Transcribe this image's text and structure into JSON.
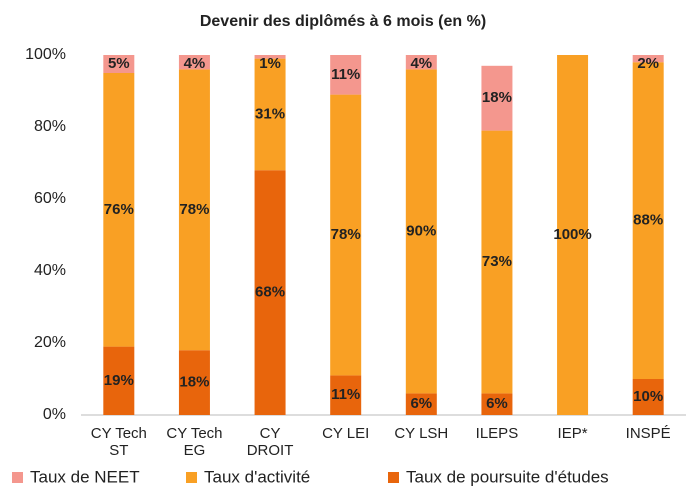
{
  "chart_data": {
    "type": "stacked_bar",
    "title": "Devenir des diplômés à 6 mois (en %)",
    "categories": [
      [
        "CY Tech",
        "ST"
      ],
      [
        "CY Tech",
        "EG"
      ],
      [
        "CY",
        "DROIT"
      ],
      [
        "CY LEI"
      ],
      [
        "CY LSH"
      ],
      [
        "ILEPS"
      ],
      [
        "IEP*"
      ],
      [
        "INSPÉ"
      ]
    ],
    "series": [
      {
        "name": "Taux de poursuite d'études",
        "color": "#E8650C",
        "values": [
          19,
          18,
          68,
          11,
          6,
          6,
          null,
          10
        ],
        "value_labels": [
          "19%",
          "18%",
          "68%",
          "11%",
          "6%",
          "6%",
          null,
          "10%"
        ]
      },
      {
        "name": "Taux d'activité",
        "color": "#F9A024",
        "values": [
          76,
          78,
          31,
          78,
          90,
          73,
          100,
          88
        ],
        "value_labels": [
          "76%",
          "78%",
          "31%",
          "78%",
          "90%",
          "73%",
          "100%",
          "88%"
        ]
      },
      {
        "name": "Taux de NEET",
        "color": "#F4978E",
        "values": [
          5,
          4,
          1,
          11,
          4,
          18,
          null,
          2
        ],
        "value_labels": [
          "5%",
          "4%",
          "1%",
          "11%",
          "4%",
          "18%",
          null,
          "2%"
        ]
      }
    ],
    "legend_order": [
      2,
      1,
      0
    ],
    "ylim": [
      0,
      100
    ],
    "yticks": [
      {
        "value": 0,
        "label": "0%"
      },
      {
        "value": 20,
        "label": "20%"
      },
      {
        "value": 40,
        "label": "40%"
      },
      {
        "value": 60,
        "label": "60%"
      },
      {
        "value": 80,
        "label": "80%"
      },
      {
        "value": 100,
        "label": "100%"
      }
    ],
    "grid": false
  }
}
